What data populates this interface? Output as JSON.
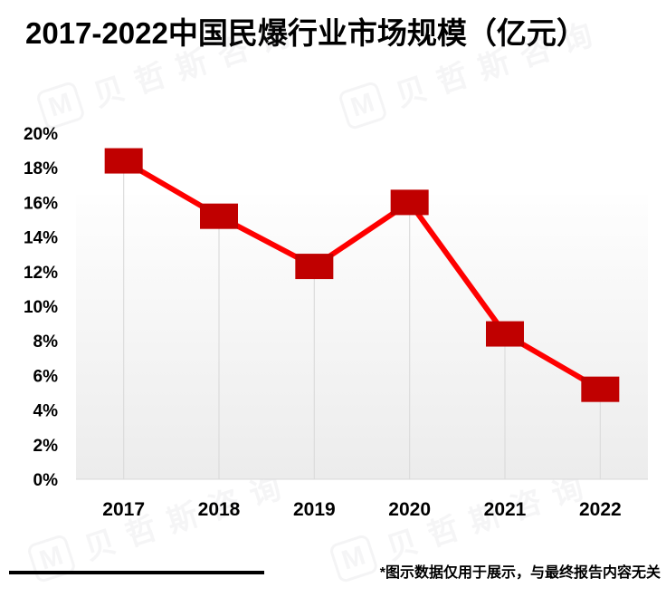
{
  "title": "2017-2022中国民爆行业市场规模（亿元）",
  "watermark": {
    "logo": "M",
    "text": "贝哲斯咨询"
  },
  "footer": {
    "note": "*图示数据仅用于展示，与最终报告内容无关"
  },
  "chart_data": {
    "type": "line",
    "title": "2017-2022中国民爆行业市场规模（亿元）",
    "categories": [
      "2017",
      "2018",
      "2019",
      "2020",
      "2021",
      "2022"
    ],
    "values": [
      18.4,
      15.2,
      12.3,
      16.0,
      8.4,
      5.2
    ],
    "unit": "%",
    "xlabel": "",
    "ylabel": "",
    "ylim": [
      0,
      20
    ],
    "y_tick_step": 2,
    "y_tick_labels": [
      "0%",
      "2%",
      "4%",
      "6%",
      "8%",
      "10%",
      "12%",
      "14%",
      "16%",
      "18%",
      "20%"
    ],
    "legend": "none",
    "grid": "drop-lines-only",
    "marker": "square",
    "colors": {
      "line": "#FE0000",
      "marker": "#C00000",
      "drop_line": "#dcdcdc",
      "axis_line": "#d8d8d8",
      "wall_top": "#fefefe",
      "wall_bottom": "#ececec",
      "text": "#000000"
    }
  }
}
